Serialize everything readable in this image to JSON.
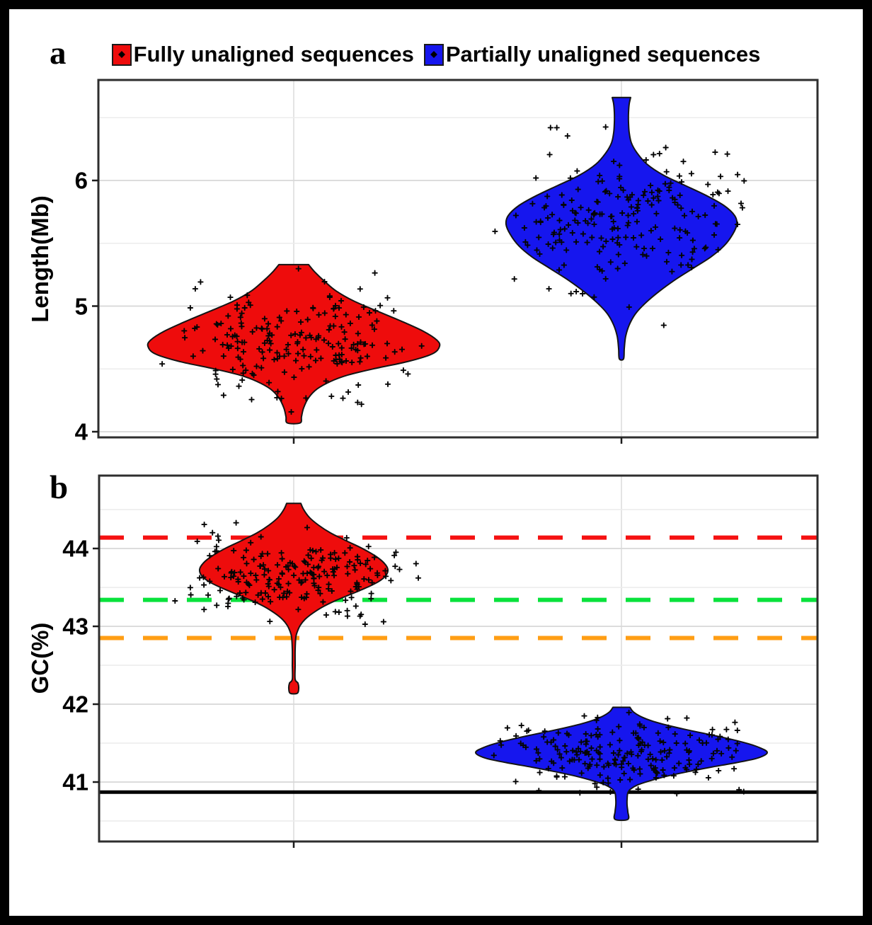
{
  "ui": {
    "panel_labels": [
      "a",
      "b"
    ],
    "legend": {
      "items": [
        {
          "label": "Fully unaligned sequences",
          "swatch_color": "#ee0c0c"
        },
        {
          "label": "Partially unaligned sequences",
          "swatch_color": "#1616ee"
        }
      ]
    }
  },
  "chart_data": [
    {
      "type": "violin",
      "panel": "a",
      "title": "",
      "xlabel": "",
      "ylabel": "Length(Mb)",
      "yticks": [
        4,
        5,
        6
      ],
      "yminor": [
        4.5,
        5.5,
        6.5
      ],
      "ylim": [
        3.95,
        6.8
      ],
      "grid": true,
      "legend_position": "top",
      "categories": [
        "Fully unaligned sequences",
        "Partially unaligned sequences"
      ],
      "ref_lines": [],
      "series": [
        {
          "name": "Fully unaligned sequences",
          "fill": "#ee0c0c",
          "category_index": 0,
          "summary": {
            "min": 4.07,
            "max": 5.33,
            "mode": 4.72,
            "mean": 4.73,
            "sd": 0.22,
            "n": 200
          },
          "violin_outline": [
            [
              5.33,
              21
            ],
            [
              5.27,
              30
            ],
            [
              5.2,
              43
            ],
            [
              5.12,
              60
            ],
            [
              5.04,
              85
            ],
            [
              4.96,
              118
            ],
            [
              4.88,
              152
            ],
            [
              4.8,
              183
            ],
            [
              4.73,
              202
            ],
            [
              4.68,
              206
            ],
            [
              4.62,
              196
            ],
            [
              4.56,
              162
            ],
            [
              4.5,
              112
            ],
            [
              4.45,
              76
            ],
            [
              4.4,
              52
            ],
            [
              4.34,
              33
            ],
            [
              4.27,
              21
            ],
            [
              4.19,
              14
            ],
            [
              4.12,
              11
            ],
            [
              4.07,
              9
            ]
          ],
          "points": {
            "n": 200,
            "mean": 4.73,
            "sd": 0.22,
            "min": 4.08,
            "max": 5.32,
            "seed": 7,
            "jitter": 190
          }
        },
        {
          "name": "Partially unaligned sequences",
          "fill": "#1616ee",
          "category_index": 1,
          "summary": {
            "min": 4.57,
            "max": 6.66,
            "mode": 5.68,
            "mean": 5.65,
            "sd": 0.3,
            "n": 210
          },
          "violin_outline": [
            [
              6.66,
              13
            ],
            [
              6.61,
              11
            ],
            [
              6.54,
              10
            ],
            [
              6.46,
              10
            ],
            [
              6.38,
              11
            ],
            [
              6.3,
              14
            ],
            [
              6.22,
              22
            ],
            [
              6.13,
              36
            ],
            [
              6.04,
              60
            ],
            [
              5.96,
              90
            ],
            [
              5.88,
              120
            ],
            [
              5.8,
              145
            ],
            [
              5.72,
              160
            ],
            [
              5.65,
              163
            ],
            [
              5.57,
              157
            ],
            [
              5.48,
              145
            ],
            [
              5.39,
              126
            ],
            [
              5.3,
              101
            ],
            [
              5.21,
              76
            ],
            [
              5.12,
              54
            ],
            [
              5.03,
              35
            ],
            [
              4.94,
              20
            ],
            [
              4.85,
              11
            ],
            [
              4.76,
              6
            ],
            [
              4.66,
              4
            ],
            [
              4.58,
              3
            ]
          ],
          "points": {
            "n": 210,
            "mean": 5.65,
            "sd": 0.3,
            "min": 4.52,
            "max": 6.66,
            "seed": 13,
            "jitter": 190
          }
        }
      ]
    },
    {
      "type": "violin",
      "panel": "b",
      "title": "",
      "xlabel": "",
      "ylabel": "GC(%)",
      "yticks": [
        41,
        42,
        43,
        44
      ],
      "yminor": [
        40.5,
        41.5,
        42.5,
        43.5,
        44.5
      ],
      "ylim": [
        40.24,
        44.94
      ],
      "grid": true,
      "categories": [
        "Fully unaligned sequences",
        "Partially unaligned sequences"
      ],
      "ref_lines": [
        {
          "y": 44.14,
          "color": "#f51111",
          "style": "dashed"
        },
        {
          "y": 43.34,
          "color": "#09e23c",
          "style": "dashed"
        },
        {
          "y": 42.85,
          "color": "#ff9e14",
          "style": "dashed"
        },
        {
          "y": 40.87,
          "color": "#000000",
          "style": "solid"
        }
      ],
      "series": [
        {
          "name": "Fully unaligned sequences",
          "fill": "#ee0c0c",
          "category_index": 0,
          "summary": {
            "min": 42.14,
            "max": 44.58,
            "mode": 43.7,
            "mean": 43.64,
            "sd": 0.27,
            "n": 205
          },
          "violin_outline": [
            [
              44.58,
              10
            ],
            [
              44.5,
              14
            ],
            [
              44.4,
              22
            ],
            [
              44.3,
              35
            ],
            [
              44.2,
              52
            ],
            [
              44.1,
              74
            ],
            [
              44.0,
              97
            ],
            [
              43.9,
              116
            ],
            [
              43.81,
              128
            ],
            [
              43.73,
              133
            ],
            [
              43.65,
              130
            ],
            [
              43.57,
              119
            ],
            [
              43.49,
              101
            ],
            [
              43.41,
              80
            ],
            [
              43.33,
              59
            ],
            [
              43.25,
              41
            ],
            [
              43.17,
              27
            ],
            [
              43.09,
              16
            ],
            [
              43.01,
              9
            ],
            [
              42.93,
              5
            ],
            [
              42.86,
              3
            ],
            [
              42.7,
              2
            ],
            [
              42.5,
              2
            ],
            [
              42.32,
              2
            ],
            [
              42.27,
              6
            ],
            [
              42.2,
              7
            ],
            [
              42.14,
              5
            ]
          ],
          "points": {
            "n": 205,
            "mean": 43.64,
            "sd": 0.27,
            "min": 42.15,
            "max": 44.56,
            "seed": 21,
            "jitter": 190
          }
        },
        {
          "name": "Partially unaligned sequences",
          "fill": "#1616ee",
          "category_index": 1,
          "summary": {
            "min": 40.52,
            "max": 41.96,
            "mode": 41.38,
            "mean": 41.4,
            "sd": 0.21,
            "n": 205
          },
          "violin_outline": [
            [
              41.96,
              12
            ],
            [
              41.9,
              17
            ],
            [
              41.83,
              30
            ],
            [
              41.76,
              52
            ],
            [
              41.68,
              88
            ],
            [
              41.6,
              130
            ],
            [
              41.52,
              168
            ],
            [
              41.45,
              193
            ],
            [
              41.38,
              206
            ],
            [
              41.31,
              193
            ],
            [
              41.25,
              163
            ],
            [
              41.19,
              126
            ],
            [
              41.13,
              92
            ],
            [
              41.07,
              62
            ],
            [
              41.01,
              38
            ],
            [
              40.96,
              22
            ],
            [
              40.91,
              13
            ],
            [
              40.86,
              9
            ],
            [
              40.78,
              8
            ],
            [
              40.7,
              8
            ],
            [
              40.62,
              9
            ],
            [
              40.52,
              9
            ]
          ],
          "points": {
            "n": 205,
            "mean": 41.38,
            "sd": 0.21,
            "min": 40.55,
            "max": 41.95,
            "seed": 29,
            "jitter": 195
          }
        }
      ]
    }
  ]
}
